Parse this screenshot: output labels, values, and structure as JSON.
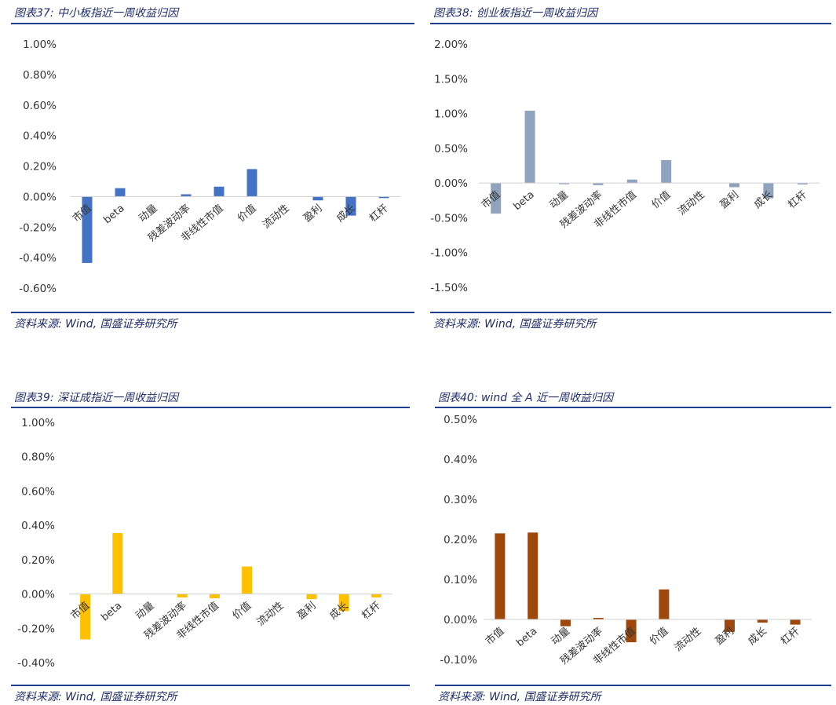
{
  "panels": [
    {
      "title": "图表37: 中小板指近一周收益归因",
      "source": "资料来源: Wind, 国盛证券研究所",
      "chart_data": {
        "type": "bar",
        "categories": [
          "市值",
          "beta",
          "动量",
          "残差波动率",
          "非线性市值",
          "价值",
          "流动性",
          "盈利",
          "成长",
          "杠杆"
        ],
        "values": [
          -0.435,
          0.055,
          0.0,
          0.015,
          0.065,
          0.18,
          0.0,
          -0.025,
          -0.125,
          -0.01
        ],
        "ylim": [
          -0.6,
          1.0
        ],
        "yticks": [
          "1.00%",
          "0.80%",
          "0.60%",
          "0.40%",
          "0.20%",
          "0.00%",
          "-0.20%",
          "-0.40%",
          "-0.60%"
        ],
        "color": "#4472c4"
      }
    },
    {
      "title": "图表38: 创业板指近一周收益归因",
      "source": "资料来源: Wind, 国盛证券研究所",
      "chart_data": {
        "type": "bar",
        "categories": [
          "市值",
          "beta",
          "动量",
          "残差波动率",
          "非线性市值",
          "价值",
          "流动性",
          "盈利",
          "成长",
          "杠杆"
        ],
        "values": [
          -0.44,
          1.04,
          -0.01,
          -0.03,
          0.05,
          0.33,
          0.0,
          -0.06,
          -0.22,
          -0.02
        ],
        "ylim": [
          -1.5,
          2.0
        ],
        "yticks": [
          "2.00%",
          "1.50%",
          "1.00%",
          "0.50%",
          "0.00%",
          "-0.50%",
          "-1.00%",
          "-1.50%"
        ],
        "color": "#8fa3bf"
      }
    },
    {
      "title": "图表39: 深证成指近一周收益归因",
      "source": "资料来源: Wind, 国盛证券研究所",
      "chart_data": {
        "type": "bar",
        "categories": [
          "市值",
          "beta",
          "动量",
          "残差波动率",
          "非线性市值",
          "价值",
          "流动性",
          "盈利",
          "成长",
          "杠杆"
        ],
        "values": [
          -0.265,
          0.355,
          0.0,
          -0.02,
          -0.025,
          0.16,
          0.0,
          -0.03,
          -0.1,
          -0.02
        ],
        "ylim": [
          -0.4,
          1.0
        ],
        "yticks": [
          "1.00%",
          "0.80%",
          "0.60%",
          "0.40%",
          "0.20%",
          "0.00%",
          "-0.20%",
          "-0.40%"
        ],
        "color": "#ffc000"
      }
    },
    {
      "title": "图表40: wind 全 A 近一周收益归因",
      "source": "资料来源: Wind, 国盛证券研究所",
      "chart_data": {
        "type": "bar",
        "categories": [
          "市值",
          "beta",
          "动量",
          "残差波动率",
          "非线性市值",
          "价值",
          "流动性",
          "盈利",
          "成长",
          "杠杆"
        ],
        "values": [
          0.215,
          0.217,
          -0.017,
          0.004,
          -0.057,
          0.075,
          0.0,
          -0.031,
          -0.008,
          -0.013
        ],
        "ylim": [
          -0.1,
          0.5
        ],
        "yticks": [
          "0.50%",
          "0.40%",
          "0.30%",
          "0.20%",
          "0.10%",
          "0.00%",
          "-0.10%"
        ],
        "color": "#9e480e"
      }
    }
  ]
}
